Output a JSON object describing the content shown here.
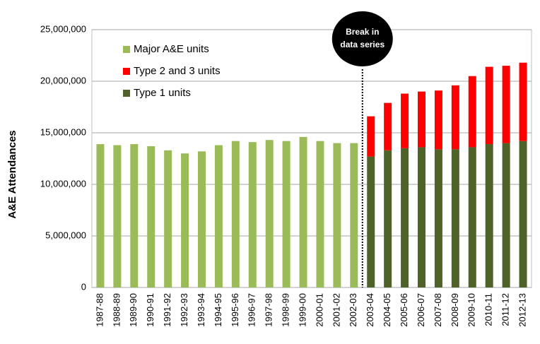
{
  "chart_data": {
    "type": "stacked_bar",
    "y_label": "A&E Attendances",
    "categories": [
      "1987-88",
      "1988-89",
      "1989-90",
      "1990-91",
      "1991-92",
      "1992-93",
      "1993-94",
      "1994-95",
      "1995-96",
      "1996-97",
      "1997-98",
      "1998-99",
      "1999-00",
      "2000-01",
      "2001-02",
      "2002-03",
      "2003-04",
      "2004-05",
      "2005-06",
      "2006-07",
      "2007-08",
      "2008-09",
      "2009-10",
      "2010-11",
      "2011-12",
      "2012-13"
    ],
    "series": [
      {
        "name": "Type 1 units",
        "color": "#4f6228",
        "values": [
          null,
          null,
          null,
          null,
          null,
          null,
          null,
          null,
          null,
          null,
          null,
          null,
          null,
          null,
          null,
          null,
          12700000,
          13300000,
          13500000,
          13600000,
          13400000,
          13400000,
          13600000,
          13900000,
          14000000,
          14200000
        ]
      },
      {
        "name": "Type 2 and 3 units",
        "color": "#ff0000",
        "values": [
          null,
          null,
          null,
          null,
          null,
          null,
          null,
          null,
          null,
          null,
          null,
          null,
          null,
          null,
          null,
          null,
          3900000,
          4600000,
          5300000,
          5400000,
          5700000,
          6200000,
          6900000,
          7500000,
          7500000,
          7600000
        ]
      },
      {
        "name": "Major A&E units",
        "color": "#9bbb59",
        "values": [
          13900000,
          13800000,
          13900000,
          13700000,
          13300000,
          13000000,
          13200000,
          13800000,
          14200000,
          14100000,
          14300000,
          14200000,
          14600000,
          14200000,
          14000000,
          14000000,
          null,
          null,
          null,
          null,
          null,
          null,
          null,
          null,
          null,
          null
        ]
      }
    ],
    "legend_reversed": true,
    "annotation": [
      "Break in",
      "data series"
    ],
    "ylim": [
      0,
      25000000
    ],
    "yticks": [
      0,
      {
        "value": 5000000,
        "label": "5,000,000"
      },
      {
        "value": 10000000,
        "label": "10,000,000"
      },
      {
        "value": 15000000,
        "label": "15,000,000"
      },
      {
        "value": 20000000,
        "label": "20,000,000"
      },
      {
        "value": 25000000,
        "label": "25,000,000"
      }
    ],
    "grid": true
  }
}
